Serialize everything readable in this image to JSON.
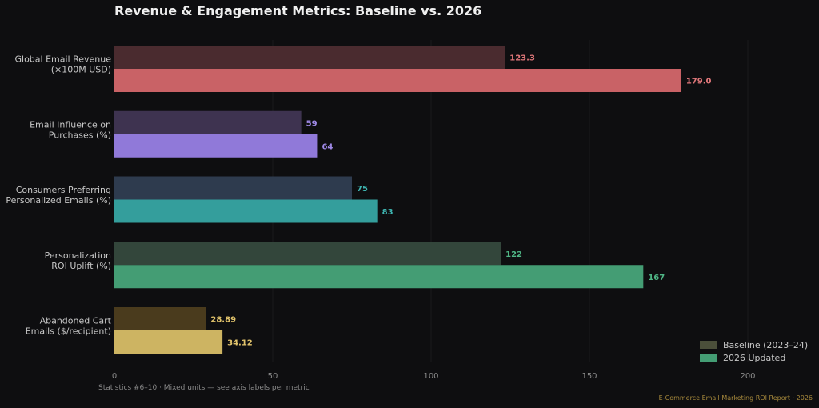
{
  "chart_data": {
    "type": "bar",
    "orientation": "horizontal",
    "title": "Revenue & Engagement Metrics: Baseline vs. 2026",
    "categories": [
      [
        "Global Email Revenue",
        "(×100M USD)"
      ],
      [
        "Email Influence on",
        "Purchases (%)"
      ],
      [
        "Consumers Preferring",
        "Personalized Emails (%)"
      ],
      [
        "Personalization",
        "ROI Uplift (%)"
      ],
      [
        "Abandoned Cart",
        "Emails ($/recipient)"
      ]
    ],
    "series": [
      {
        "name": "Baseline (2023–24)",
        "values": [
          123.3,
          59,
          75,
          122,
          28.89
        ],
        "labels": [
          "123.3",
          "59",
          "75",
          "122",
          "28.89"
        ],
        "colors": [
          "#4a2b2f",
          "#3e3350",
          "#2e3b4e",
          "#33463b",
          "#4a3b1d"
        ]
      },
      {
        "name": "2026 Updated",
        "values": [
          179.0,
          64,
          83,
          167,
          34.12
        ],
        "labels": [
          "179.0",
          "64",
          "83",
          "167",
          "34.12"
        ],
        "colors": [
          "#c96266",
          "#9079d9",
          "#349e9c",
          "#449d74",
          "#cdb462"
        ]
      }
    ],
    "label_colors": [
      "#e0777a",
      "#a08ae8",
      "#3fb8b4",
      "#4fb585",
      "#e2c46c"
    ],
    "xlim": [
      0,
      200
    ],
    "xticks": [
      0,
      50,
      100,
      150,
      200
    ],
    "legend_colors": [
      "#4b4f3a",
      "#449d74"
    ],
    "legend_position": "bottom-right",
    "grid": false
  },
  "footnote": "Statistics #6–10  ·  Mixed units — see axis labels per metric",
  "source": "E-Commerce Email Marketing ROI Report · 2026"
}
